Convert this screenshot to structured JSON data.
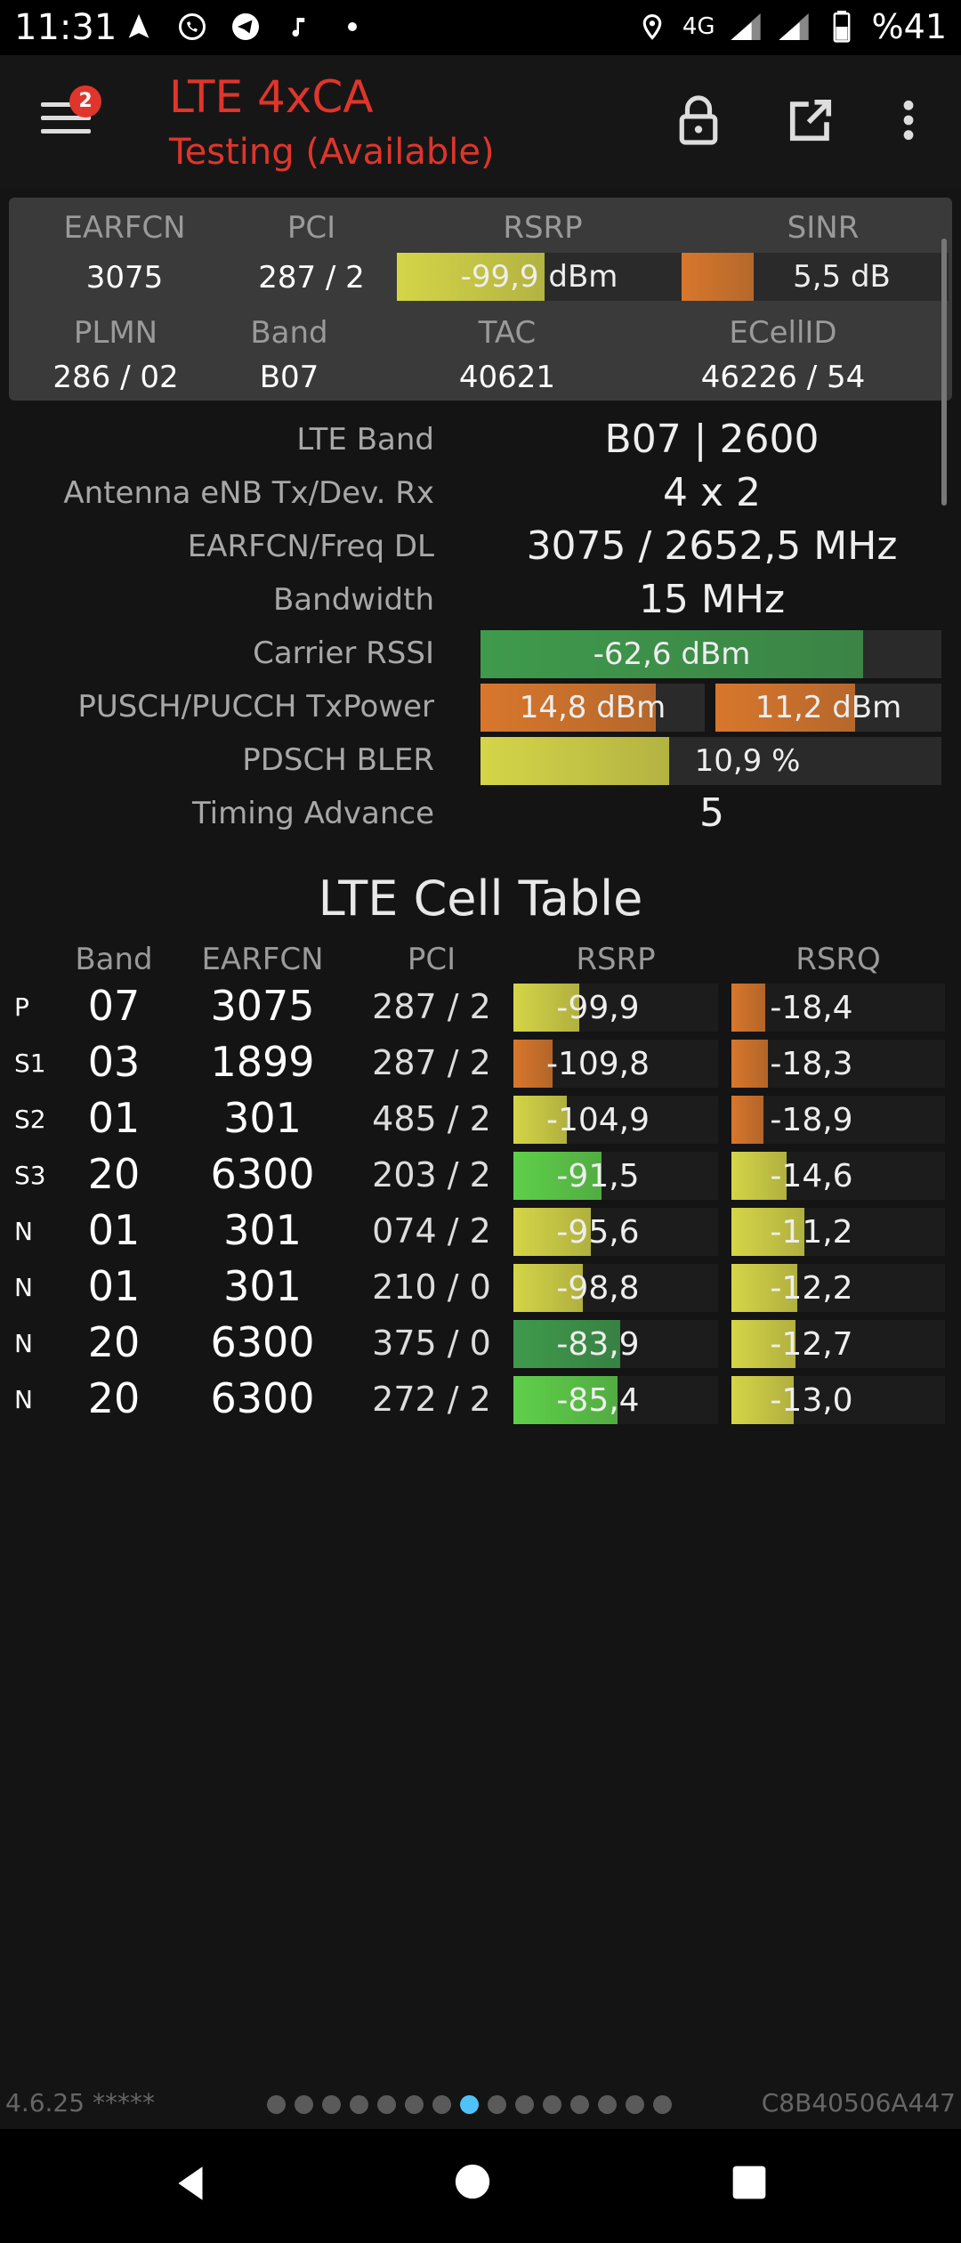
{
  "status_bar": {
    "time": "11:31",
    "network": "4G",
    "battery": "%41",
    "icons_left": [
      "navigation-arrow-icon",
      "whatsapp-icon",
      "telegram-icon",
      "music-note-icon",
      "dot-icon"
    ],
    "icons_right": [
      "location-icon",
      "signal-icon",
      "signal-icon-2",
      "battery-icon"
    ]
  },
  "app_bar": {
    "title": "LTE 4xCA",
    "subtitle": "Testing (Available)",
    "menu_badge": "2",
    "actions": [
      "lock-icon",
      "open-external-icon",
      "more-vert-icon"
    ]
  },
  "summary": {
    "headers": [
      "EARFCN",
      "PCI",
      "RSRP",
      "SINR"
    ],
    "earfcn": "3075",
    "pci": "287 / 2",
    "rsrp": {
      "text": "-99,9 dBm",
      "level": 0.52,
      "color": "#d5d548"
    },
    "sinr": {
      "text": "5,5 dB",
      "level": 0.27,
      "color": "#d8772c"
    },
    "headers2": [
      "PLMN",
      "Band",
      "TAC",
      "ECellID"
    ],
    "plmn": "286 / 02",
    "band": "B07",
    "tac": "40621",
    "ecellid": "46226 / 54"
  },
  "details": {
    "lte_band_label": "LTE Band",
    "lte_band_value": "B07 | 2600",
    "antenna_label": "Antenna eNB Tx/Dev. Rx",
    "antenna_value": "4 x 2",
    "earfcn_label": "EARFCN/Freq DL",
    "earfcn_value": "3075 / 2652,5 MHz",
    "bandwidth_label": "Bandwidth",
    "bandwidth_value": "15 MHz",
    "rssi_label": "Carrier RSSI",
    "rssi_value": {
      "text": "-62,6 dBm",
      "level": 0.83,
      "color": "#3f9a4c"
    },
    "txpower_label": "PUSCH/PUCCH TxPower",
    "pusch": {
      "text": "14,8 dBm",
      "level": 0.78,
      "color": "#d8772c"
    },
    "pucch": {
      "text": "11,2 dBm",
      "level": 0.62,
      "color": "#d8772c"
    },
    "bler_label": "PDSCH BLER",
    "bler_value": {
      "text": "10,9 %",
      "level": 0.41,
      "color": "#d5d548"
    },
    "ta_label": "Timing Advance",
    "ta_value": "5"
  },
  "cell_table": {
    "title": "LTE Cell Table",
    "headers": [
      "Band",
      "EARFCN",
      "PCI",
      "RSRP",
      "RSRQ"
    ],
    "rows": [
      {
        "type": "P",
        "band": "07",
        "earfcn": "3075",
        "pci": "287 / 2",
        "rsrp": "-99,9",
        "rsrp_level": 0.32,
        "rsrp_color": "#d5d548",
        "rsrq": "-18,4",
        "rsrq_level": 0.16,
        "rsrq_color": "#d8772c"
      },
      {
        "type": "S1",
        "band": "03",
        "earfcn": "1899",
        "pci": "287 / 2",
        "rsrp": "-109,8",
        "rsrp_level": 0.19,
        "rsrp_color": "#d8772c",
        "rsrq": "-18,3",
        "rsrq_level": 0.17,
        "rsrq_color": "#d8772c"
      },
      {
        "type": "S2",
        "band": "01",
        "earfcn": "301",
        "pci": "485 / 2",
        "rsrp": "-104,9",
        "rsrp_level": 0.26,
        "rsrp_color": "#d5d548",
        "rsrq": "-18,9",
        "rsrq_level": 0.15,
        "rsrq_color": "#d8772c"
      },
      {
        "type": "S3",
        "band": "20",
        "earfcn": "6300",
        "pci": "203 / 2",
        "rsrp": "-91,5",
        "rsrp_level": 0.43,
        "rsrp_color": "#5fd04a",
        "rsrq": "-14,6",
        "rsrq_level": 0.26,
        "rsrq_color": "#d5d548"
      },
      {
        "type": "N",
        "band": "01",
        "earfcn": "301",
        "pci": "074 / 2",
        "rsrp": "-95,6",
        "rsrp_level": 0.38,
        "rsrp_color": "#d5d548",
        "rsrq": "-11,2",
        "rsrq_level": 0.34,
        "rsrq_color": "#d5d548"
      },
      {
        "type": "N",
        "band": "01",
        "earfcn": "301",
        "pci": "210 / 0",
        "rsrp": "-98,8",
        "rsrp_level": 0.34,
        "rsrp_color": "#d5d548",
        "rsrq": "-12,2",
        "rsrq_level": 0.31,
        "rsrq_color": "#d5d548"
      },
      {
        "type": "N",
        "band": "20",
        "earfcn": "6300",
        "pci": "375 / 0",
        "rsrp": "-83,9",
        "rsrp_level": 0.52,
        "rsrp_color": "#3f9a4c",
        "rsrq": "-12,7",
        "rsrq_level": 0.3,
        "rsrq_color": "#d5d548"
      },
      {
        "type": "N",
        "band": "20",
        "earfcn": "6300",
        "pci": "272 / 2",
        "rsrp": "-85,4",
        "rsrp_level": 0.51,
        "rsrp_color": "#5fd04a",
        "rsrq": "-13,0",
        "rsrq_level": 0.29,
        "rsrq_color": "#d5d548"
      }
    ]
  },
  "footer": {
    "version": "4.6.25 *****",
    "device_id": "C8B40506A447",
    "page_count": 15,
    "active_page": 8
  },
  "nav_bar": {
    "buttons": [
      "back-icon",
      "home-icon",
      "recents-icon"
    ]
  }
}
